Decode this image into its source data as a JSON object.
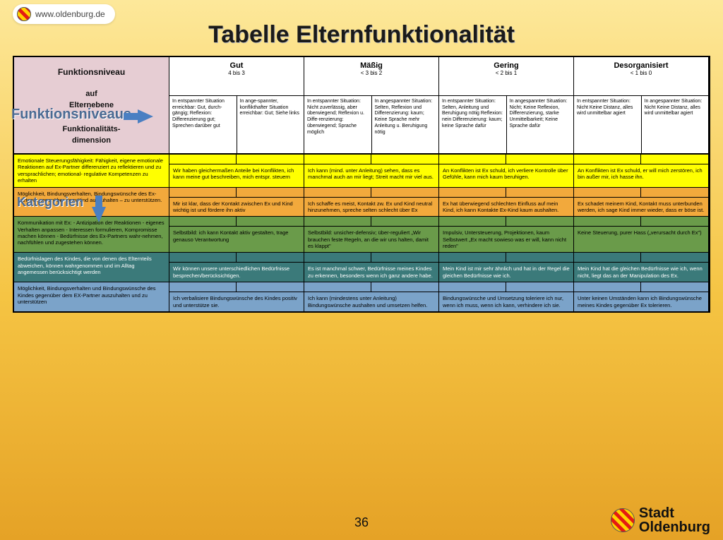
{
  "url": "www.oldenburg.de",
  "title": "Tabelle Elternfunktionalität",
  "page_number": "36",
  "footer_brand": "Stadt\nOldenburg",
  "corner": {
    "line1": "Funktionsniveau",
    "line2": "auf",
    "line3": "Elternebene",
    "line4": "Funktionalitäts-",
    "line5": "dimension"
  },
  "overlay1": "Funktionsniveaus",
  "overlay2": "Kategorien",
  "levels": [
    {
      "label": "Gut",
      "range": "4 bis 3"
    },
    {
      "label": "Mäßig",
      "range": "< 3 bis 2"
    },
    {
      "label": "Gering",
      "range": "< 2 bis 1"
    },
    {
      "label": "Desorganisiert",
      "range": "< 1 bis 0"
    }
  ],
  "subheads": [
    "In entspannter Situation erreichbar: Gut, durch-gängig; Reflexion: Differenzierung gut; Sprechen darüber gut",
    "In ange-spannter, konflikthafter Situation erreichbar: Gut; Siehe links",
    "In entspannter Situation: Nicht zuverlässig, aber überwiegend; Reflexion u. Diffe-renzierung: überwiegend; Sprache möglich",
    "In angespannter Situation: Selten, Reflexion und Differenzierung: kaum; Keine Sprache mehr Anleitung u. Beruhigung nötig",
    "In entspannter Situation: Selten, Anleitung und Beruhigung nötig Reflexion: nein Differenzierung: kaum; keine Sprache dafür",
    "In angespannter Situation: Nicht; Keine Reflexion, Differenzierung, starke Unmittelbarkeit; Keine Sprache dafür",
    "In entspannter Situation: Nicht Keine Distanz, alles wird unmittelbar agiert",
    "In angespannter Situation: Nicht Keine Distanz, alles wird unmittelbar agiert"
  ],
  "rows": [
    {
      "color": "r-yellow",
      "dim": "Emotionale Steuerungsfähigkeit: Fähigkeit, eigene emotionale Reaktionen auf Ex-Partner differenziert zu reflektieren und zu versprachlichen; emotional- regulative Kompetenzen zu erhalten",
      "cells": [
        "Wir haben gleichermaßen Anteile bei Konflikten, ich kann meine gut beschreiben, mich entspr. steuern",
        "Ich kann (mind. unter Anleitung) sehen, dass es manchmal auch an mir liegt; Streit macht mir viel aus.",
        "An Konflikten ist Ex schuld, ich verliere Kontrolle über Gefühle, kann mich kaum beruhigen.",
        "An Konflikten ist Ex schuld, er will mich zerstören, ich bin außer mir, ich hasse ihn."
      ]
    },
    {
      "color": "r-orange",
      "dim": "Möglichkeit, Bindungsverhalten, Bindungswünsche des Ex-Partners gegenüber dem Kind auszuhalten – zu unterstützen.",
      "cells": [
        "Mir ist klar, dass der Kontakt zwischen Ex und Kind wichtig ist und fördere ihn aktiv",
        "Ich schaffe es meist, Kontakt zw. Ex und Kind neutral hinzunehmen, spreche selten schlecht über Ex",
        "Ex hat überwiegend schlechten Einfluss auf mein Kind, ich kann Kontakte Ex-Kind kaum aushalten.",
        "Ex schadet meinem Kind, Kontakt muss unterbunden werden, ich sage Kind immer wieder, dass er böse ist."
      ]
    },
    {
      "color": "r-green",
      "dim": "Kommunikation mit Ex:\n- Antizipation der Reaktionen\n- eigenes Verhalten anpassen\n- Interessen formulieren, Kompromisse machen können\n- Bedürfnisse des Ex-Partners wahr-nehmen, nachfühlen und zugestehen können.",
      "cells": [
        "Selbstbild: ich kann Kontakt aktiv gestalten, trage genauso Verantwortung",
        "Selbstbild: unsicher-defensiv; über-reguliert „Wir brauchen feste Regeln, an die wir uns halten, damit es klappt\"",
        "Impulsiv, Untersteuerung, Projektionen, kaum Selbstwert „Ex macht sowieso was er will, kann nicht reden\"",
        "Keine Steuerung, purer Hass („verursacht durch Ex\")"
      ]
    },
    {
      "color": "r-teal",
      "dim": "Bedürfnislagen des Kindes, die von denen des Elternteils abweichen, können wahrgenommen und im Alltag angemessen berücksichtigt werden",
      "cells": [
        "Wir können unsere unterschiedlichen Bedürfnisse besprechen/berücksichtigen.",
        "Es ist manchmal schwer, Bedürfnisse meines Kindes zu erkennen, besonders wenn ich ganz andere habe.",
        "Mein Kind ist mir sehr ähnlich und hat in der Regel die gleichen Bedürfnisse wie ich.",
        "Mein Kind hat die gleichen Bedürfnisse wie ich, wenn nicht, liegt das an der Manipulation des Ex."
      ]
    },
    {
      "color": "r-blue",
      "dim": "Möglichkeit, Bindungsverhalten und Bindungswünsche des Kindes gegenüber dem EX-Partner auszuhalten und zu unterstützen",
      "cells": [
        "Ich verbalisiere Bindungswünsche des Kindes positiv und unterstütze sie.",
        "Ich kann (mindestens unter Anleitung) Bindungswünsche aushalten und umsetzen helfen.",
        "Bindungswünsche und Umsetzung toleriere ich nur, wenn ich muss, wenn ich kann, verhindere ich sie.",
        "Unter keinen Umständen kann ich Bindungswünsche meines Kindes gegenüber Ex tolerieren."
      ]
    }
  ],
  "colors": {
    "bg_top": "#fde89a",
    "bg_bottom": "#e5a226",
    "yellow": "#ffff00",
    "orange": "#f2a93c",
    "green": "#6a9b4a",
    "teal": "#3b7a7a",
    "blue": "#7ba3c9",
    "corner": "#e6cdd3",
    "overlay_color": "#4a6a93"
  }
}
